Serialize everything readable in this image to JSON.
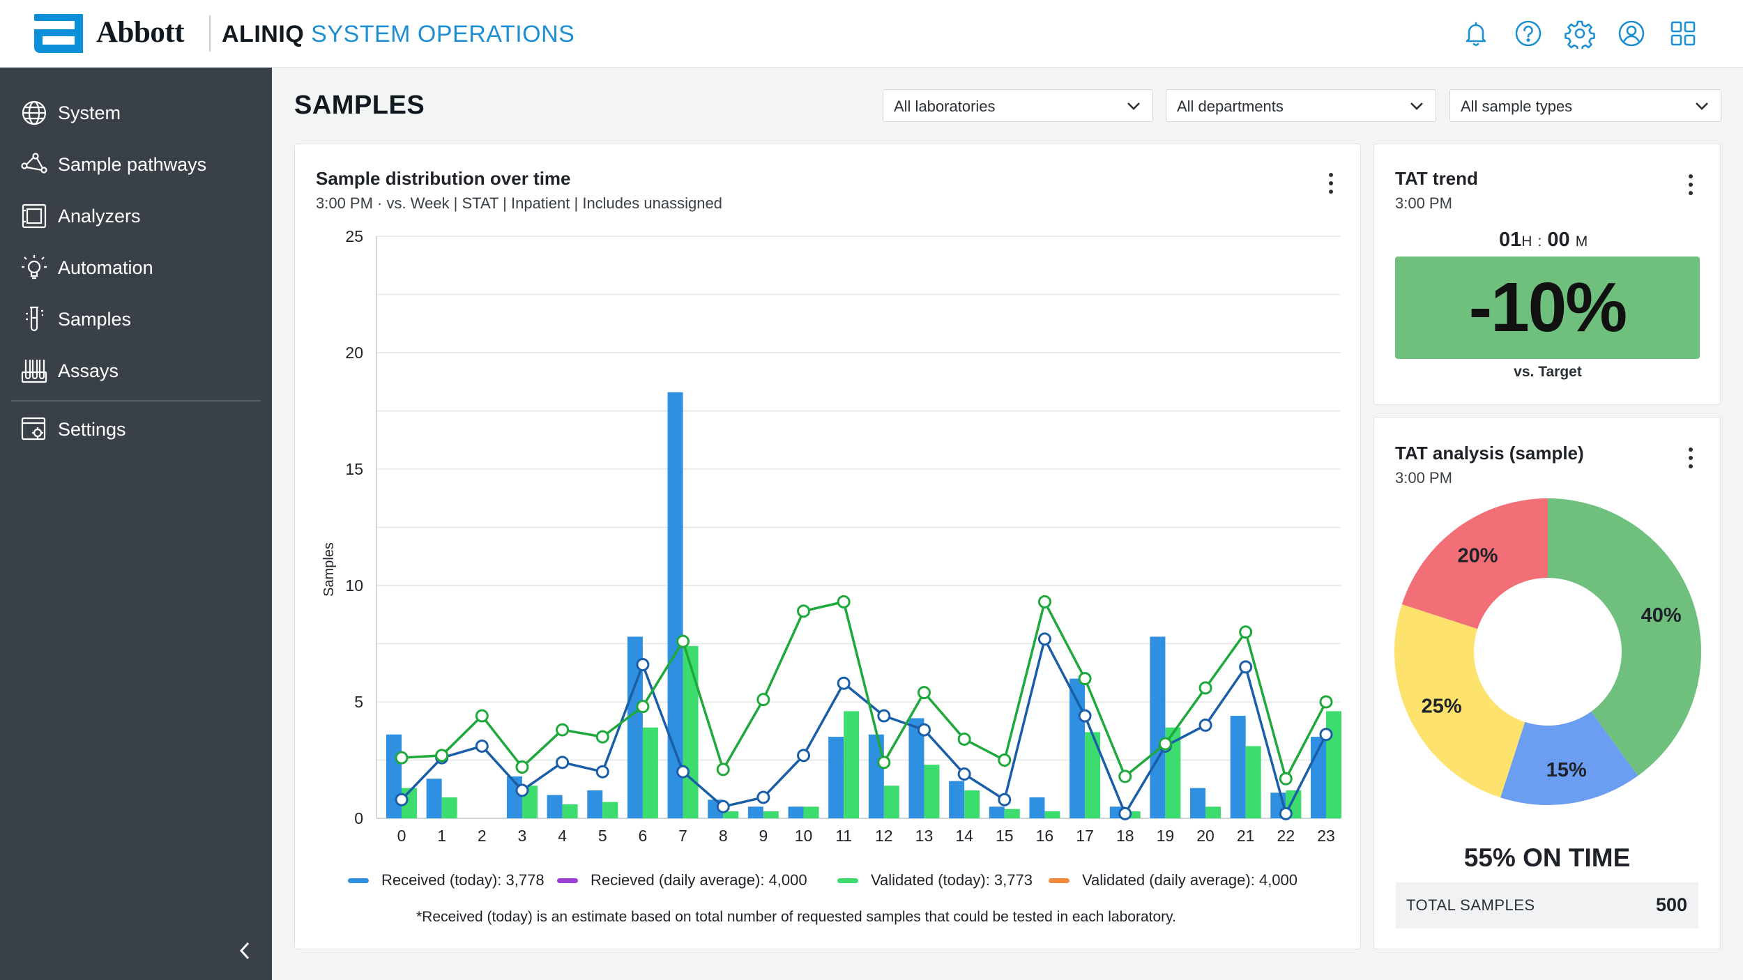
{
  "header": {
    "logo_text": "Abbott",
    "product_brand": "ALINIQ",
    "product_sub": "SYSTEM OPERATIONS",
    "icons": [
      "bell-icon",
      "help-icon",
      "gear-icon",
      "user-icon",
      "apps-grid-icon"
    ]
  },
  "sidebar": {
    "items": [
      {
        "label": "System",
        "icon": "globe-icon"
      },
      {
        "label": "Sample pathways",
        "icon": "share-nodes-icon"
      },
      {
        "label": "Analyzers",
        "icon": "analyzer-icon"
      },
      {
        "label": "Automation",
        "icon": "bulb-icon"
      },
      {
        "label": "Samples",
        "icon": "test-tube-icon"
      },
      {
        "label": "Assays",
        "icon": "assays-icon"
      },
      {
        "label": "Settings",
        "icon": "settings-window-icon"
      }
    ]
  },
  "page": {
    "title": "SAMPLES",
    "filters": [
      "All laboratories",
      "All departments",
      "All sample types"
    ]
  },
  "distribution_card": {
    "title": "Sample distribution over time",
    "subtitle": "3:00 PM · vs. Week | STAT | Inpatient | Includes unassigned",
    "legend": [
      "Received (today): 3,778",
      "Recieved (daily average): 4,000",
      "Validated (today): 3,773",
      "Validated (daily average): 4,000"
    ],
    "footnote": "*Received (today) is an estimate based on total number of requested samples that could be tested in each laboratory."
  },
  "tat_trend": {
    "title": "TAT trend",
    "subtitle": "3:00 PM",
    "hours": "01",
    "hours_unit": "H",
    "separator": ":",
    "minutes": "00",
    "minutes_unit": "M",
    "value": "-10%",
    "caption": "vs. Target"
  },
  "tat_analysis": {
    "title": "TAT analysis (sample)",
    "subtitle": "3:00 PM",
    "on_time": "55% ON TIME",
    "total_label": "TOTAL SAMPLES",
    "total_value": "500"
  },
  "colors": {
    "received_today": "#2f8fe0",
    "received_avg_line": "#1a5ea8",
    "received_avg_legend": "#9b3fd4",
    "validated_today": "#3ddc6e",
    "validated_avg_line": "#1fa83c",
    "validated_avg_legend": "#f28a3d",
    "tat_green": "#6fbf7d"
  },
  "chart_data": [
    {
      "type": "bar",
      "title": "Sample distribution over time",
      "xlabel": "",
      "ylabel": "Samples",
      "ylim": [
        0,
        25
      ],
      "yticks": [
        0,
        5,
        10,
        15,
        20,
        25
      ],
      "grid": true,
      "legend_position": "bottom",
      "categories": [
        "0",
        "1",
        "2",
        "3",
        "4",
        "5",
        "6",
        "7",
        "8",
        "9",
        "10",
        "11",
        "12",
        "13",
        "14",
        "15",
        "16",
        "17",
        "18",
        "19",
        "20",
        "21",
        "22",
        "23"
      ],
      "series": [
        {
          "name": "Received (today): 3,778",
          "kind": "bar",
          "color": "#2f8fe0",
          "values": [
            3.6,
            1.7,
            0,
            1.8,
            1.0,
            1.2,
            7.8,
            18.3,
            0.8,
            0.5,
            0.5,
            3.5,
            3.6,
            4.3,
            1.6,
            0.5,
            0.9,
            6.0,
            0.5,
            7.8,
            1.3,
            4.4,
            1.1,
            3.5
          ]
        },
        {
          "name": "Validated (today): 3,773",
          "kind": "bar",
          "color": "#3ddc6e",
          "values": [
            1.3,
            0.9,
            0,
            1.4,
            0.6,
            0.7,
            3.9,
            7.4,
            0.3,
            0.3,
            0.5,
            4.6,
            1.4,
            2.3,
            1.2,
            0.4,
            0.3,
            3.7,
            0.3,
            3.9,
            0.5,
            3.1,
            1.2,
            4.6
          ]
        },
        {
          "name": "Recieved (daily average): 4,000",
          "kind": "line",
          "color": "#1a5ea8",
          "values": [
            0.8,
            2.6,
            3.1,
            1.2,
            2.4,
            2.0,
            6.6,
            2.0,
            0.5,
            0.9,
            2.7,
            5.8,
            4.4,
            3.8,
            1.9,
            0.8,
            7.7,
            4.4,
            0.2,
            3.1,
            4.0,
            6.5,
            0.2,
            3.6
          ]
        },
        {
          "name": "Validated (daily average): 4,000",
          "kind": "line",
          "color": "#1fa83c",
          "values": [
            2.6,
            2.7,
            4.4,
            2.2,
            3.8,
            3.5,
            4.8,
            7.6,
            2.1,
            5.1,
            8.9,
            9.3,
            2.4,
            5.4,
            3.4,
            2.5,
            9.3,
            6.0,
            1.8,
            3.2,
            5.6,
            8.0,
            1.7,
            5.0
          ]
        }
      ]
    },
    {
      "type": "pie",
      "title": "TAT analysis (sample)",
      "donut": true,
      "slices": [
        {
          "label": "40%",
          "value": 40,
          "color": "#6fbf7d"
        },
        {
          "label": "15%",
          "value": 15,
          "color": "#6b9ef0"
        },
        {
          "label": "25%",
          "value": 25,
          "color": "#fde36e"
        },
        {
          "label": "20%",
          "value": 20,
          "color": "#f26f78"
        }
      ]
    }
  ]
}
